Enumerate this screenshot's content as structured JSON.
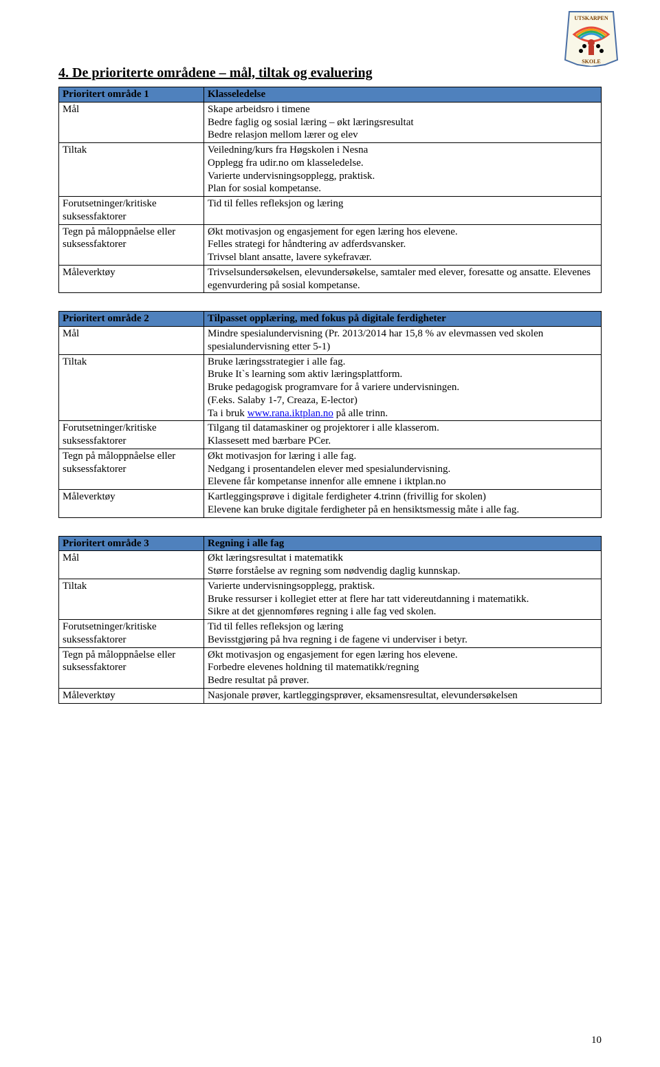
{
  "heading": "4. De prioriterte områdene – mål, tiltak og evaluering",
  "page_number": "10",
  "link_text": "www.rana.iktplan.no",
  "colors": {
    "header_bg": "#4f81bd",
    "text": "#000000",
    "link": "#0000ee",
    "border": "#000000",
    "page_bg": "#ffffff"
  },
  "logo": {
    "top_text": "UTSKARPEN",
    "bottom_text": "SKOLE"
  },
  "tables": [
    {
      "header_label": "Prioritert område 1",
      "header_value": "Klasseledelse",
      "rows": [
        {
          "label": "Mål",
          "value": "Skape arbeidsro i timene\nBedre faglig og sosial læring – økt læringsresultat\nBedre relasjon mellom lærer og elev"
        },
        {
          "label": "Tiltak",
          "value": "Veiledning/kurs fra Høgskolen i Nesna\nOpplegg fra udir.no om klasseledelse.\nVarierte undervisningsopplegg, praktisk.\nPlan for sosial kompetanse."
        },
        {
          "label": "Forutsetninger/kritiske suksessfaktorer",
          "value": "Tid til felles refleksjon og læring"
        },
        {
          "label": "Tegn på måloppnåelse eller suksessfaktorer",
          "value": "Økt motivasjon og engasjement for egen læring hos elevene.\nFelles strategi for håndtering av adferdsvansker.\nTrivsel blant ansatte, lavere sykefravær."
        },
        {
          "label": "Måleverktøy",
          "value": "Trivselsundersøkelsen, elevundersøkelse, samtaler med elever, foresatte og ansatte. Elevenes egenvurdering på sosial kompetanse."
        }
      ]
    },
    {
      "header_label": "Prioritert område 2",
      "header_value": "Tilpasset opplæring, med fokus på digitale ferdigheter",
      "rows": [
        {
          "label": "Mål",
          "value": "Mindre spesialundervisning (Pr. 2013/2014 har 15,8 % av elevmassen ved skolen spesialundervisning etter 5-1)"
        },
        {
          "label": "Tiltak",
          "value_html": true,
          "value": "Bruke læringsstrategier i alle fag.\nBruke It`s learning som aktiv læringsplattform.\nBruke pedagogisk programvare for å variere undervisningen.\n(F.eks. Salaby 1-7, Creaza, E-lector)\nTa i bruk [[LINK]] på alle trinn."
        },
        {
          "label": "Forutsetninger/kritiske suksessfaktorer",
          "value": "Tilgang til datamaskiner og projektorer i alle klasserom.\nKlassesett med bærbare PCer."
        },
        {
          "label": "Tegn på måloppnåelse eller suksessfaktorer",
          "value": "Økt motivasjon for læring i alle fag.\nNedgang i prosentandelen elever med spesialundervisning.\nElevene får kompetanse innenfor alle emnene i iktplan.no"
        },
        {
          "label": "Måleverktøy",
          "value": "Kartleggingsprøve i digitale ferdigheter 4.trinn (frivillig for skolen)\nElevene kan bruke digitale ferdigheter på en hensiktsmessig måte i alle fag."
        }
      ]
    },
    {
      "header_label": "Prioritert område 3",
      "header_value": "Regning i alle fag",
      "rows": [
        {
          "label": "Mål",
          "value": "Økt læringsresultat i matematikk\nStørre forståelse av regning som nødvendig daglig kunnskap."
        },
        {
          "label": "Tiltak",
          "value": "Varierte undervisningsopplegg, praktisk.\nBruke ressurser i kollegiet etter at flere har tatt videreutdanning i matematikk.\nSikre at det gjennomføres regning i alle fag ved skolen."
        },
        {
          "label": "Forutsetninger/kritiske suksessfaktorer",
          "value": "Tid til felles refleksjon og læring\nBevisstgjøring på hva regning i de fagene vi underviser i betyr."
        },
        {
          "label": "Tegn på måloppnåelse eller suksessfaktorer",
          "value": "Økt motivasjon og engasjement for egen læring hos elevene.\nForbedre elevenes holdning til matematikk/regning\nBedre resultat på prøver."
        },
        {
          "label": "Måleverktøy",
          "value": "Nasjonale prøver, kartleggingsprøver, eksamensresultat, elevundersøkelsen"
        }
      ]
    }
  ]
}
